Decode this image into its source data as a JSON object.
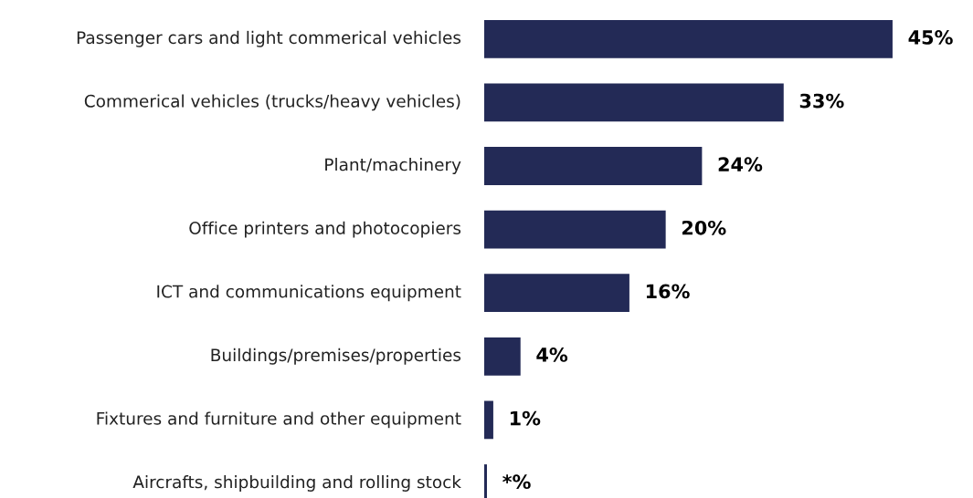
{
  "chart_data": {
    "type": "bar",
    "orientation": "horizontal",
    "categories": [
      "Passenger cars and light commerical vehicles",
      "Commerical vehicles (trucks/heavy vehicles)",
      "Plant/machinery",
      "Office printers and photocopiers",
      "ICT and communications equipment",
      "Buildings/premises/properties",
      "Fixtures and furniture and other equipment",
      "Aircrafts, shipbuilding and rolling stock"
    ],
    "values": [
      45,
      33,
      24,
      20,
      16,
      4,
      1,
      0.3
    ],
    "value_labels": [
      "45%",
      "33%",
      "24%",
      "20%",
      "16%",
      "4%",
      "1%",
      "*%"
    ],
    "color": "#232a56"
  }
}
